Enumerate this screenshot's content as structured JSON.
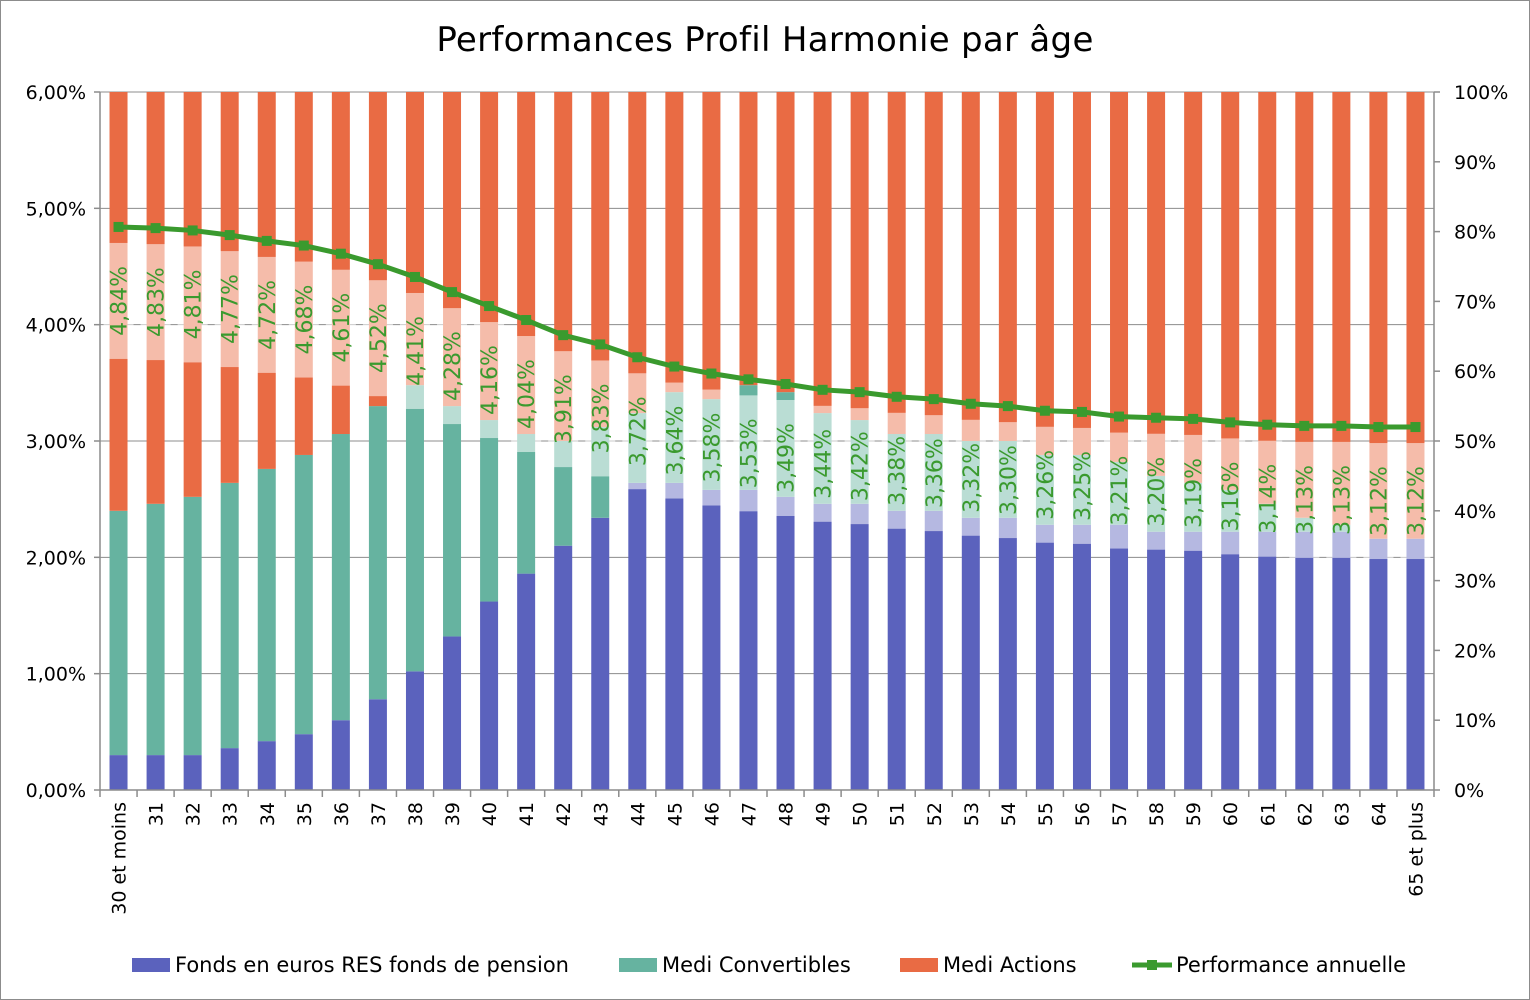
{
  "chart_data": {
    "type": "bar",
    "stacked": true,
    "title": "Performances Profil Harmonie par âge",
    "categories": [
      "30 et moins",
      "31",
      "32",
      "33",
      "34",
      "35",
      "36",
      "37",
      "38",
      "39",
      "40",
      "41",
      "42",
      "43",
      "44",
      "45",
      "46",
      "47",
      "48",
      "49",
      "50",
      "51",
      "52",
      "53",
      "54",
      "55",
      "56",
      "57",
      "58",
      "59",
      "60",
      "61",
      "62",
      "63",
      "64",
      "65 et plus"
    ],
    "series": [
      {
        "name": "Fonds en euros RES fonds de pension",
        "axis": "right",
        "color": "#5b62bd",
        "values": [
          5,
          5,
          5,
          6,
          7,
          8,
          10,
          13,
          17,
          22,
          27,
          31,
          35,
          39,
          44,
          44,
          43,
          43,
          42,
          41,
          41,
          40,
          40,
          39,
          39,
          38,
          38,
          38,
          37,
          37,
          37,
          37,
          37,
          37,
          36,
          36
        ]
      },
      {
        "name": "Medi Convertibles",
        "axis": "right",
        "color": "#66b3a0",
        "values": [
          35,
          36,
          37,
          38,
          39,
          40,
          41,
          42,
          41,
          33,
          26,
          20,
          15,
          13,
          10,
          13,
          13,
          15,
          15,
          13,
          12,
          11,
          11,
          11,
          11,
          10,
          10,
          9,
          8,
          7,
          6,
          4,
          2,
          1,
          0,
          0
        ]
      },
      {
        "name": "Medi Actions",
        "axis": "right",
        "color": "#e96b44",
        "values": [
          60,
          59,
          58,
          56,
          54,
          52,
          49,
          45,
          42,
          45,
          47,
          49,
          50,
          48,
          46,
          43,
          44,
          42,
          43,
          46,
          47,
          49,
          49,
          50,
          50,
          52,
          52,
          53,
          55,
          56,
          57,
          59,
          61,
          62,
          64,
          64
        ]
      },
      {
        "name": "Performance annuelle",
        "type": "line",
        "axis": "left",
        "color": "#3a9a2e",
        "values": [
          4.84,
          4.83,
          4.81,
          4.77,
          4.72,
          4.68,
          4.61,
          4.52,
          4.41,
          4.28,
          4.16,
          4.04,
          3.91,
          3.83,
          3.72,
          3.64,
          3.58,
          3.53,
          3.49,
          3.44,
          3.42,
          3.38,
          3.36,
          3.32,
          3.3,
          3.26,
          3.25,
          3.21,
          3.2,
          3.19,
          3.16,
          3.14,
          3.13,
          3.13,
          3.12,
          3.12
        ],
        "labels": [
          "4,84%",
          "4,83%",
          "4,81%",
          "4,77%",
          "4,72%",
          "4,68%",
          "4,61%",
          "4,52%",
          "4,41%",
          "4,28%",
          "4,16%",
          "4,04%",
          "3,91%",
          "3,83%",
          "3,72%",
          "3,64%",
          "3,58%",
          "3,53%",
          "3,49%",
          "3,44%",
          "3,42%",
          "3,38%",
          "3,36%",
          "3,32%",
          "3,30%",
          "3,26%",
          "3,25%",
          "3,21%",
          "3,20%",
          "3,19%",
          "3,16%",
          "3,14%",
          "3,13%",
          "3,13%",
          "3,12%",
          "3,12%"
        ]
      }
    ],
    "y_left": {
      "range": [
        0,
        6
      ],
      "ticks": [
        0,
        1,
        2,
        3,
        4,
        5,
        6
      ],
      "tick_labels": [
        "0,00%",
        "1,00%",
        "2,00%",
        "3,00%",
        "4,00%",
        "5,00%",
        "6,00%"
      ]
    },
    "y_right": {
      "range": [
        0,
        100
      ],
      "ticks": [
        0,
        10,
        20,
        30,
        40,
        50,
        60,
        70,
        80,
        90,
        100
      ],
      "tick_labels": [
        "0%",
        "10%",
        "20%",
        "30%",
        "40%",
        "50%",
        "60%",
        "70%",
        "80%",
        "90%",
        "100%"
      ]
    },
    "grid": true,
    "legend": {
      "position": "bottom",
      "entries": [
        {
          "label": "Fonds en euros RES fonds de pension",
          "color": "#5b62bd",
          "kind": "box"
        },
        {
          "label": "Medi Convertibles",
          "color": "#66b3a0",
          "kind": "box"
        },
        {
          "label": "Medi Actions",
          "color": "#e96b44",
          "kind": "box"
        },
        {
          "label": "Performance annuelle",
          "color": "#3a9a2e",
          "kind": "line"
        }
      ]
    }
  }
}
